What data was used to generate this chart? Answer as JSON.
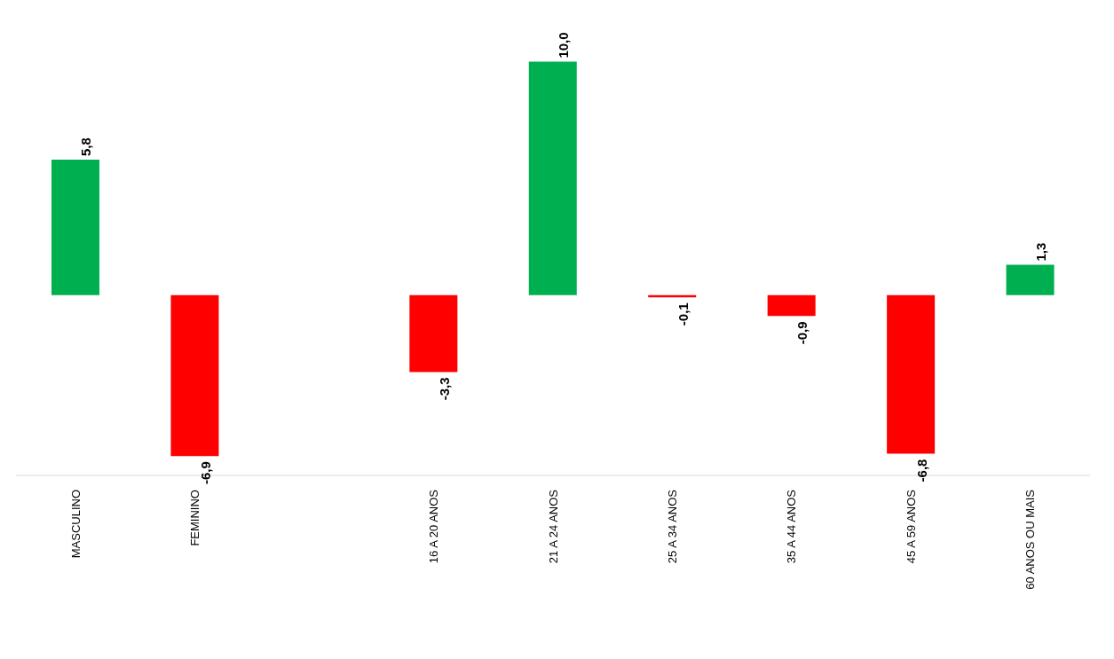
{
  "chart_data": {
    "type": "bar",
    "categories": [
      "MASCULINO",
      "FEMININO",
      null,
      "16 A 20 ANOS",
      "21 A 24 ANOS",
      "25 A 34 ANOS",
      "35 A 44 ANOS",
      "45 A 59 ANOS",
      "60 ANOS OU MAIS"
    ],
    "values": [
      5.8,
      -6.9,
      null,
      -3.3,
      10.0,
      -0.1,
      -0.9,
      -6.8,
      1.3
    ],
    "colors": [
      "#00b050",
      "#ff0000",
      null,
      "#ff0000",
      "#00b050",
      "#ff0000",
      "#ff0000",
      "#ff0000",
      "#00b050"
    ],
    "value_labels": [
      "5,8",
      "-6,9",
      null,
      "-3,3",
      "10,0",
      "-0,1",
      "-0,9",
      "-6,8",
      "1,3"
    ]
  }
}
